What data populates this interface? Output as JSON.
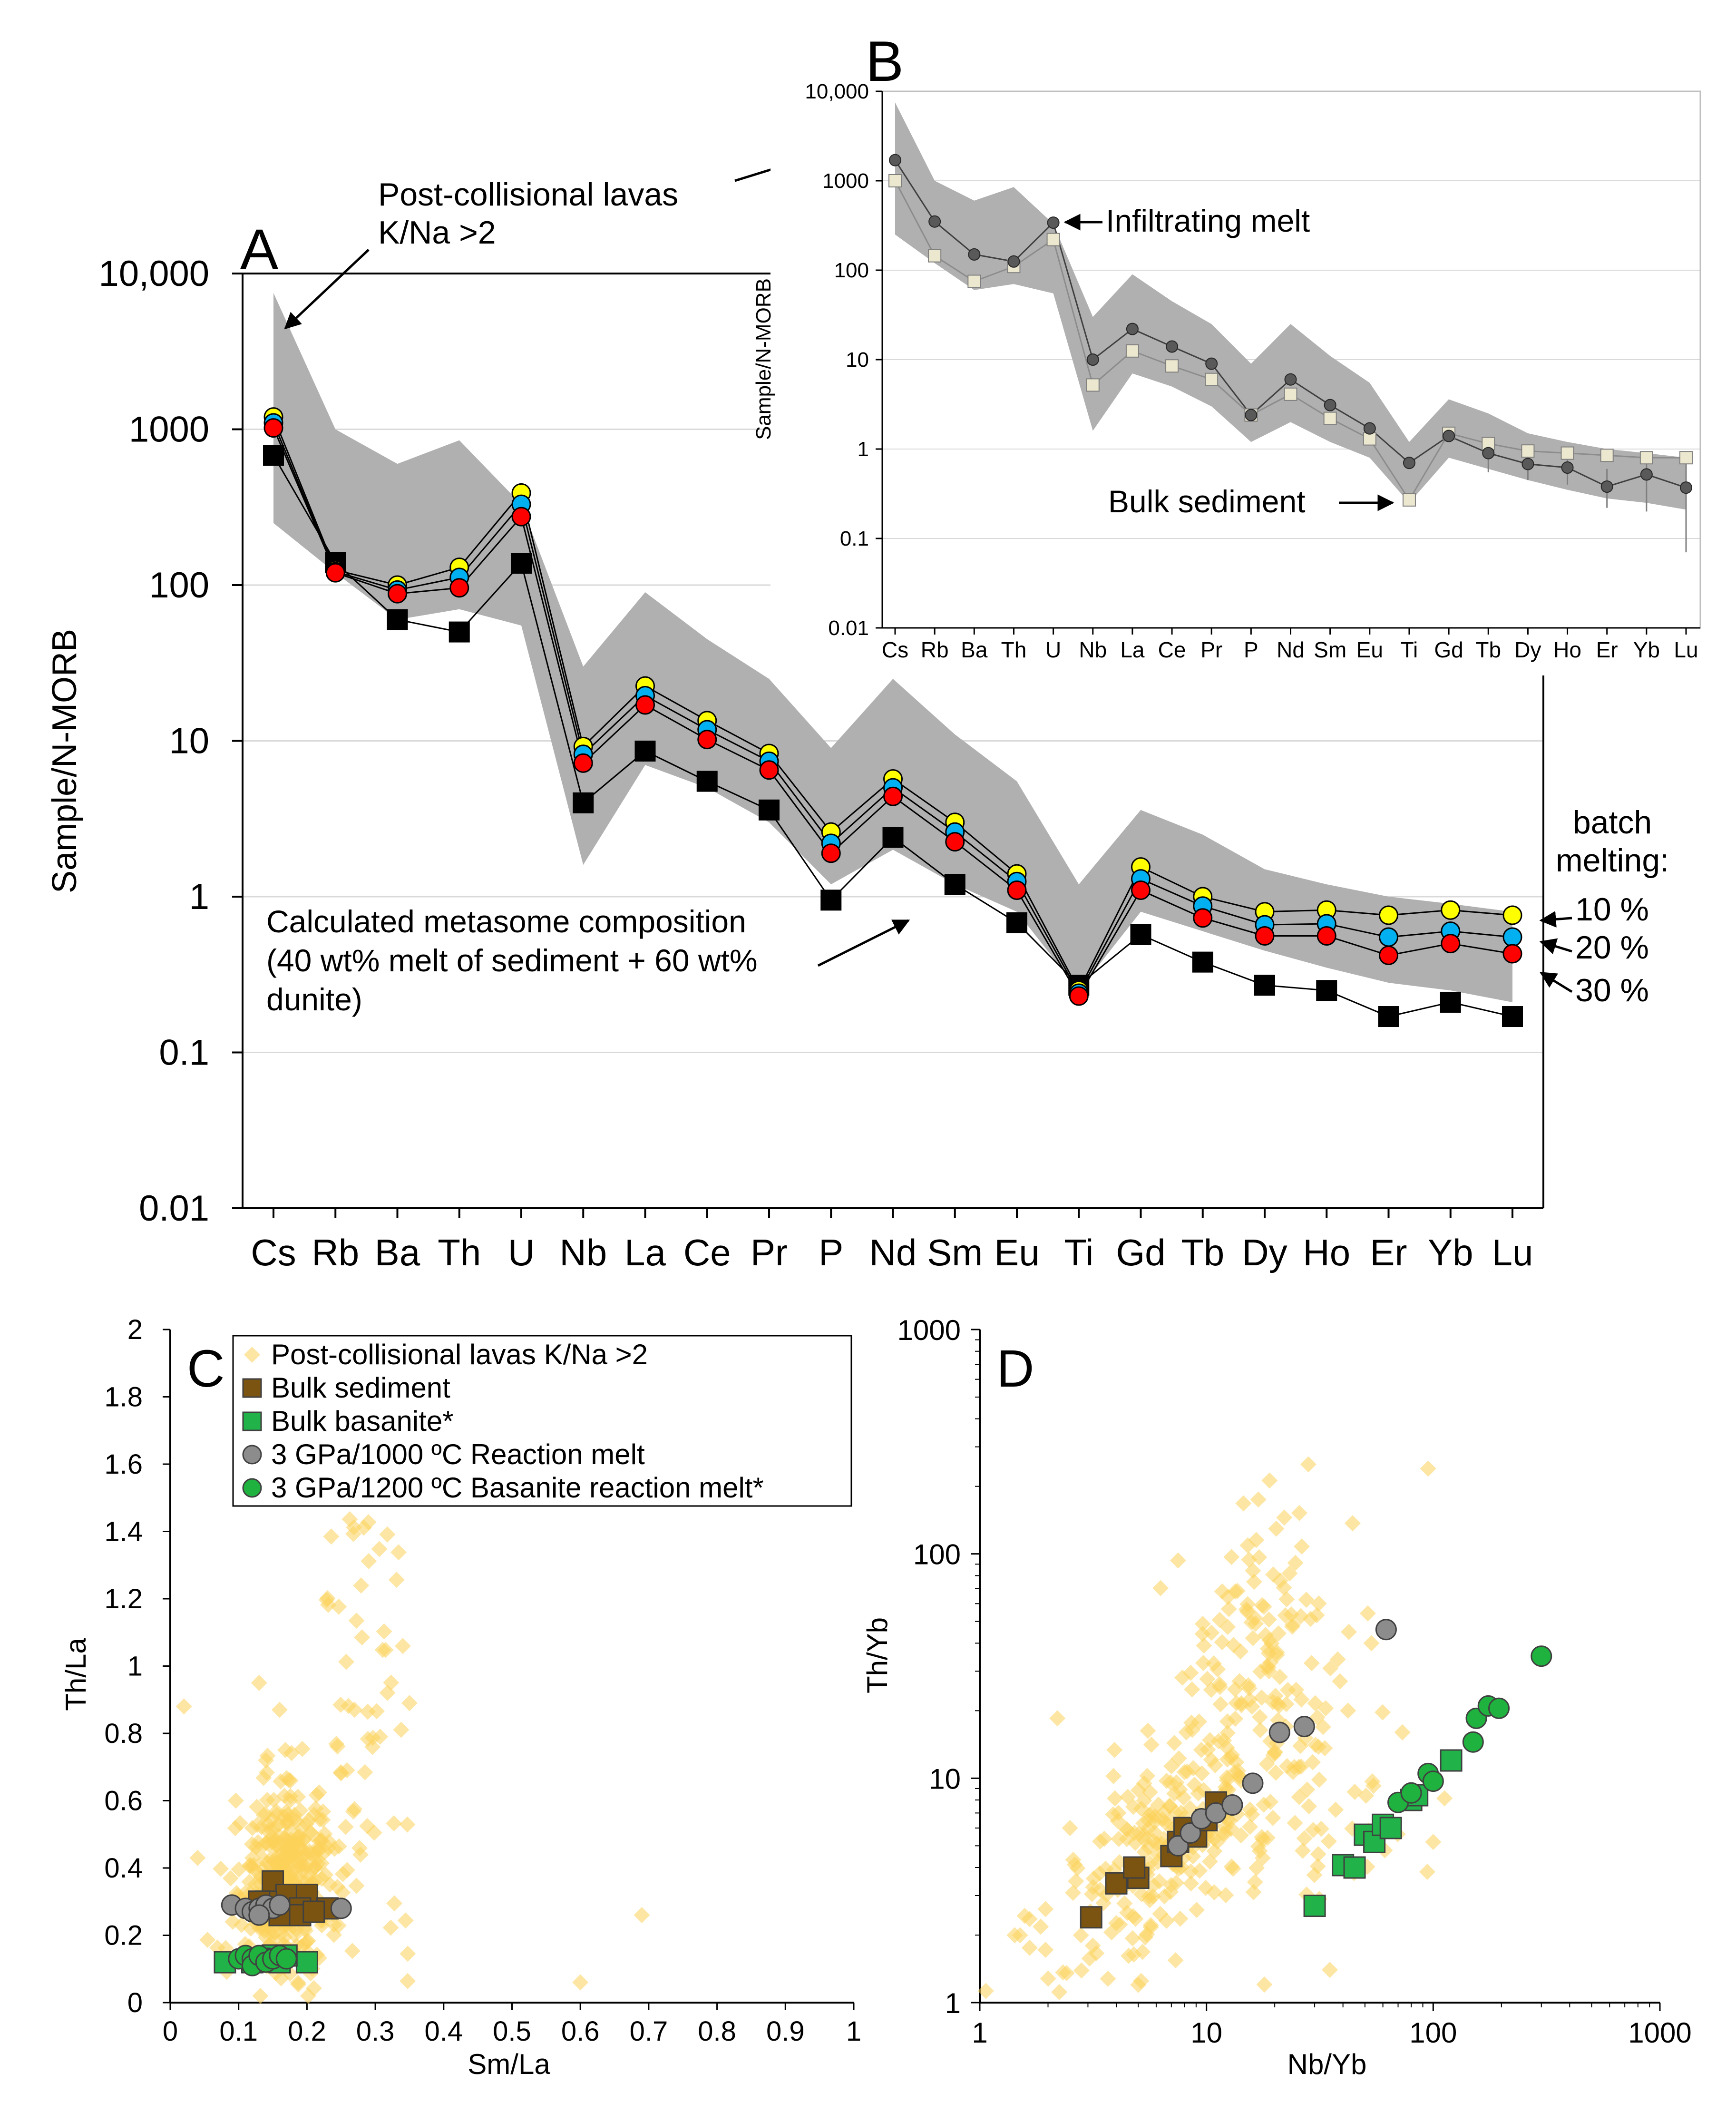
{
  "colors": {
    "envelope": "#b0b0b0",
    "lavas": "#fcd25a",
    "sediment": "#7b5412",
    "basanite": "#21b34a",
    "reaction_melt": "#8c8c8c",
    "basanite_melt": "#1fb23f",
    "melt10": "#ffff00",
    "melt20": "#00b0f0",
    "melt30": "#ff0000",
    "metasome": "#000000",
    "infiltrating": "#595959",
    "bulk_sed_b": "#ece7cf",
    "grid": "#d9d9d9"
  },
  "chart_data": [
    {
      "id": "A",
      "type": "line",
      "panel_label": "A",
      "ylabel": "Sample/N-MORB",
      "yscale": "log",
      "ylim": [
        0.01,
        10000
      ],
      "ytick_labels": [
        "0.01",
        "0.1",
        "1",
        "10",
        "100",
        "1000",
        "10,000"
      ],
      "categories": [
        "Cs",
        "Rb",
        "Ba",
        "Th",
        "U",
        "Nb",
        "La",
        "Ce",
        "Pr",
        "P",
        "Nd",
        "Sm",
        "Eu",
        "Ti",
        "Gd",
        "Tb",
        "Dy",
        "Ho",
        "Er",
        "Yb",
        "Lu"
      ],
      "envelope": {
        "name": "Post-collisional lavas K/Na >2",
        "upper": [
          7500,
          1000,
          600,
          850,
          330,
          30,
          90,
          45,
          25,
          9,
          25,
          11,
          5.5,
          1.2,
          3.6,
          2.5,
          1.5,
          1.2,
          1.0,
          0.9,
          0.8
        ],
        "lower": [
          250,
          120,
          60,
          70,
          55,
          1.6,
          7,
          5,
          3,
          1.2,
          2,
          1.2,
          0.8,
          0.25,
          0.8,
          0.6,
          0.45,
          0.35,
          0.28,
          0.25,
          0.21
        ]
      },
      "series": [
        {
          "name": "10 %",
          "marker": "circle",
          "values": [
            1200,
            125,
            100,
            130,
            390,
            9.2,
            22.5,
            13.5,
            8.3,
            2.6,
            5.7,
            3.0,
            1.4,
            0.25,
            1.55,
            1.0,
            0.8,
            0.82,
            0.76,
            0.82,
            0.76
          ]
        },
        {
          "name": "20 %",
          "marker": "circle",
          "values": [
            1100,
            122,
            93,
            112,
            330,
            8.2,
            19.5,
            11.8,
            7.4,
            2.2,
            5.0,
            2.6,
            1.25,
            0.24,
            1.3,
            0.87,
            0.66,
            0.67,
            0.55,
            0.6,
            0.55
          ]
        },
        {
          "name": "30 %",
          "marker": "circle",
          "values": [
            1020,
            120,
            88,
            96,
            275,
            7.2,
            17,
            10.2,
            6.5,
            1.9,
            4.4,
            2.25,
            1.1,
            0.23,
            1.1,
            0.73,
            0.56,
            0.56,
            0.42,
            0.5,
            0.43
          ]
        },
        {
          "name": "Calculated metasome composition",
          "marker": "square",
          "values": [
            680,
            140,
            60,
            50,
            138,
            4.0,
            8.6,
            5.5,
            3.6,
            0.95,
            2.4,
            1.2,
            0.68,
            0.27,
            0.57,
            0.38,
            0.27,
            0.25,
            0.17,
            0.21,
            0.17
          ]
        }
      ],
      "annotations": {
        "lavas_line1": "Post-collisional lavas",
        "lavas_line2": "K/Na >2",
        "metasome_line1": "Calculated metasome composition",
        "metasome_line2": "(40 wt% melt of sediment + 60 wt%",
        "metasome_line3": "dunite)",
        "batch_line1": "batch",
        "batch_line2": "melting:",
        "batch_10": "10 %",
        "batch_20": "20 %",
        "batch_30": "30 %"
      }
    },
    {
      "id": "B",
      "type": "line",
      "panel_label": "B",
      "ylabel": "Sample/N-MORB",
      "yscale": "log",
      "ylim": [
        0.01,
        10000
      ],
      "ytick_labels": [
        "0.01",
        "0.1",
        "1",
        "10",
        "100",
        "1000",
        "10,000"
      ],
      "categories": [
        "Cs",
        "Rb",
        "Ba",
        "Th",
        "U",
        "Nb",
        "La",
        "Ce",
        "Pr",
        "P",
        "Nd",
        "Sm",
        "Eu",
        "Ti",
        "Gd",
        "Tb",
        "Dy",
        "Ho",
        "Er",
        "Yb",
        "Lu"
      ],
      "envelope": {
        "upper": [
          7500,
          1000,
          600,
          850,
          330,
          30,
          90,
          45,
          25,
          9,
          25,
          11,
          5.5,
          1.2,
          3.6,
          2.5,
          1.5,
          1.2,
          1.0,
          0.9,
          0.8
        ],
        "lower": [
          250,
          120,
          60,
          70,
          55,
          1.6,
          7,
          5,
          3,
          1.2,
          2,
          1.2,
          0.8,
          0.25,
          0.8,
          0.6,
          0.45,
          0.35,
          0.28,
          0.25,
          0.21
        ]
      },
      "series": [
        {
          "name": "Infiltrating melt",
          "marker": "circle",
          "values": [
            1700,
            350,
            150,
            125,
            340,
            10,
            22,
            14,
            9,
            2.4,
            6,
            3.1,
            1.7,
            0.7,
            1.4,
            0.9,
            0.68,
            0.62,
            0.38,
            0.52,
            0.37
          ]
        },
        {
          "name": "Bulk sediment",
          "marker": "square",
          "values": [
            1000,
            145,
            75,
            110,
            220,
            5.2,
            12.5,
            8.5,
            6,
            2.4,
            4.1,
            2.2,
            1.3,
            0.27,
            1.5,
            1.15,
            0.95,
            0.9,
            0.85,
            0.8,
            0.8
          ]
        }
      ],
      "error_bars": {
        "Tb": [
          0.55,
          1.2
        ],
        "Dy": [
          0.45,
          0.95
        ],
        "Ho": [
          0.4,
          0.85
        ],
        "Er": [
          0.22,
          0.6
        ],
        "Yb": [
          0.2,
          0.9
        ],
        "Lu": [
          0.07,
          0.7
        ]
      },
      "annotations": {
        "infiltrating": "Infiltrating melt",
        "bulk_sediment": "Bulk sediment"
      }
    },
    {
      "id": "C",
      "type": "scatter",
      "panel_label": "C",
      "xlabel": "Sm/La",
      "ylabel": "Th/La",
      "xlim": [
        0,
        1
      ],
      "ylim": [
        0,
        2
      ],
      "xtick_labels": [
        "0",
        "0.1",
        "0.2",
        "0.3",
        "0.4",
        "0.5",
        "0.6",
        "0.7",
        "0.8",
        "0.9",
        "1"
      ],
      "ytick_labels": [
        "0",
        "0.2",
        "0.4",
        "0.6",
        "0.8",
        "1",
        "1.2",
        "1.4",
        "1.6",
        "1.8",
        "2"
      ],
      "legend": [
        "Post-collisional lavas K/Na >2",
        "Bulk sediment",
        "Bulk basanite*",
        "3 GPa/1000 ºC Reaction melt",
        "3 GPa/1200 ºC Basanite reaction melt*"
      ],
      "series": [
        {
          "name": "Post-collisional lavas K/Na >2",
          "marker": "diamond",
          "generated": {
            "count": 460,
            "seed": 11
          }
        },
        {
          "name": "Bulk sediment",
          "marker": "square",
          "points": [
            [
              0.15,
              0.36
            ],
            [
              0.17,
              0.32
            ],
            [
              0.2,
              0.32
            ],
            [
              0.14,
              0.3
            ],
            [
              0.19,
              0.28
            ],
            [
              0.23,
              0.28
            ],
            [
              0.16,
              0.26
            ],
            [
              0.19,
              0.26
            ],
            [
              0.13,
              0.3
            ],
            [
              0.21,
              0.27
            ]
          ]
        },
        {
          "name": "Bulk basanite*",
          "marker": "square",
          "points": [
            [
              0.08,
              0.12
            ],
            [
              0.12,
              0.12
            ],
            [
              0.2,
              0.12
            ],
            [
              0.15,
              0.14
            ],
            [
              0.17,
              0.14
            ],
            [
              0.13,
              0.13
            ],
            [
              0.16,
              0.12
            ]
          ]
        },
        {
          "name": "3 GPa/1000 ºC Reaction melt",
          "marker": "circle",
          "points": [
            [
              0.09,
              0.29
            ],
            [
              0.11,
              0.28
            ],
            [
              0.12,
              0.27
            ],
            [
              0.13,
              0.28
            ],
            [
              0.14,
              0.29
            ],
            [
              0.15,
              0.28
            ],
            [
              0.16,
              0.29
            ],
            [
              0.25,
              0.28
            ],
            [
              0.13,
              0.26
            ]
          ]
        },
        {
          "name": "3 GPa/1200 ºC Basanite reaction melt*",
          "marker": "circle",
          "points": [
            [
              0.1,
              0.13
            ],
            [
              0.11,
              0.14
            ],
            [
              0.12,
              0.13
            ],
            [
              0.12,
              0.11
            ],
            [
              0.13,
              0.14
            ],
            [
              0.14,
              0.12
            ],
            [
              0.15,
              0.13
            ],
            [
              0.16,
              0.14
            ],
            [
              0.17,
              0.13
            ]
          ]
        }
      ]
    },
    {
      "id": "D",
      "type": "scatter",
      "panel_label": "D",
      "xlabel": "Nb/Yb",
      "ylabel": "Th/Yb",
      "xscale": "log",
      "yscale": "log",
      "xlim": [
        1,
        1000
      ],
      "ylim": [
        1,
        1000
      ],
      "xtick_labels": [
        "1",
        "10",
        "100",
        "1000"
      ],
      "ytick_labels": [
        "1",
        "10",
        "100",
        "1000"
      ],
      "series": [
        {
          "name": "Post-collisional lavas K/Na >2",
          "marker": "diamond",
          "generated": {
            "count": 430,
            "seed": 23
          }
        },
        {
          "name": "Bulk sediment",
          "marker": "square",
          "points": [
            [
              3.1,
              2.4
            ],
            [
              4,
              3.4
            ],
            [
              5,
              3.6
            ],
            [
              4.8,
              4
            ],
            [
              7,
              4.5
            ],
            [
              7.5,
              5.2
            ],
            [
              9,
              5.5
            ],
            [
              10,
              6.5
            ],
            [
              11,
              7.8
            ],
            [
              8,
              6
            ]
          ]
        },
        {
          "name": "Bulk basanite*",
          "marker": "square",
          "points": [
            [
              30,
              2.7
            ],
            [
              40,
              4.1
            ],
            [
              45,
              4
            ],
            [
              50,
              5.6
            ],
            [
              55,
              5.2
            ],
            [
              60,
              6.2
            ],
            [
              65,
              6
            ],
            [
              80,
              8
            ],
            [
              85,
              8.4
            ],
            [
              120,
              12
            ]
          ]
        },
        {
          "name": "3 GPa/1000 ºC Reaction melt",
          "marker": "circle",
          "points": [
            [
              7.5,
              5
            ],
            [
              8.5,
              5.7
            ],
            [
              9.5,
              6.6
            ],
            [
              11,
              7
            ],
            [
              13,
              7.6
            ],
            [
              16,
              9.5
            ],
            [
              21,
              16
            ],
            [
              27,
              17
            ],
            [
              62,
              46
            ]
          ]
        },
        {
          "name": "3 GPa/1200 ºC Basanite reaction melt*",
          "marker": "circle",
          "points": [
            [
              70,
              7.8
            ],
            [
              80,
              8.6
            ],
            [
              95,
              10.5
            ],
            [
              100,
              9.7
            ],
            [
              150,
              14.5
            ],
            [
              155,
              18.5
            ],
            [
              175,
              21
            ],
            [
              195,
              20.5
            ],
            [
              300,
              35
            ]
          ]
        }
      ]
    }
  ]
}
